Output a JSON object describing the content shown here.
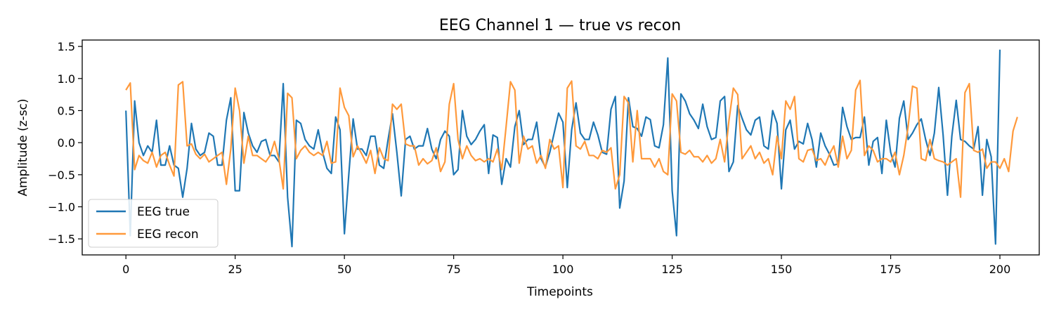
{
  "chart_data": {
    "type": "line",
    "title": "EEG Channel 1 — true vs recon",
    "xlabel": "Timepoints",
    "ylabel": "Amplitude (z-sc)",
    "xlim": [
      -10,
      209
    ],
    "ylim": [
      -1.75,
      1.6
    ],
    "xticks": [
      0,
      25,
      50,
      75,
      100,
      125,
      150,
      175,
      200
    ],
    "yticks": [
      -1.5,
      -1.0,
      -0.5,
      0.0,
      0.5,
      1.0,
      1.5
    ],
    "ytick_labels": [
      "−1.5",
      "−1.0",
      "−0.5",
      "0.0",
      "0.5",
      "1.0",
      "1.5"
    ],
    "grid": false,
    "legend_position": "lower-left",
    "series": [
      {
        "name": "EEG true",
        "color": "#1f77b4",
        "values": [
          0.5,
          -1.45,
          0.65,
          0.0,
          -0.2,
          -0.05,
          -0.15,
          0.35,
          -0.35,
          -0.35,
          -0.05,
          -0.35,
          -0.4,
          -0.85,
          -0.4,
          0.3,
          -0.1,
          -0.2,
          -0.15,
          0.15,
          0.1,
          -0.35,
          -0.35,
          0.35,
          0.7,
          -0.75,
          -0.75,
          0.47,
          0.15,
          -0.05,
          -0.15,
          0.02,
          0.05,
          -0.2,
          -0.2,
          -0.3,
          0.92,
          -0.85,
          -1.62,
          0.35,
          0.3,
          0.05,
          -0.05,
          -0.1,
          0.2,
          -0.15,
          -0.4,
          -0.48,
          0.4,
          0.2,
          -1.42,
          -0.5,
          0.37,
          -0.1,
          -0.1,
          -0.2,
          0.1,
          0.1,
          -0.35,
          -0.4,
          0.05,
          0.45,
          -0.15,
          -0.83,
          0.05,
          0.1,
          -0.1,
          -0.05,
          -0.05,
          0.22,
          -0.1,
          -0.25,
          0.05,
          0.18,
          0.1,
          -0.5,
          -0.42,
          0.5,
          0.1,
          -0.03,
          0.05,
          0.18,
          0.28,
          -0.48,
          0.12,
          0.08,
          -0.65,
          -0.25,
          -0.38,
          0.25,
          0.5,
          -0.03,
          0.05,
          0.05,
          0.32,
          -0.25,
          -0.38,
          -0.15,
          0.15,
          0.46,
          0.32,
          -0.7,
          0.2,
          0.62,
          0.15,
          0.05,
          0.05,
          0.32,
          0.12,
          -0.15,
          -0.18,
          0.52,
          0.72,
          -1.02,
          -0.6,
          0.7,
          0.25,
          0.22,
          0.1,
          0.4,
          0.36,
          -0.05,
          -0.08,
          0.28,
          1.32,
          -0.75,
          -1.45,
          0.76,
          0.65,
          0.45,
          0.35,
          0.22,
          0.6,
          0.25,
          0.05,
          0.08,
          0.65,
          0.72,
          -0.45,
          -0.3,
          0.58,
          0.38,
          0.2,
          0.12,
          0.35,
          0.4,
          -0.05,
          -0.1,
          0.5,
          0.3,
          -0.72,
          0.2,
          0.35,
          -0.1,
          0.02,
          -0.02,
          0.3,
          0.05,
          -0.38,
          0.15,
          -0.05,
          -0.18,
          -0.35,
          -0.33,
          0.55,
          0.25,
          0.05,
          0.08,
          0.08,
          0.4,
          -0.35,
          0.02,
          0.08,
          -0.48,
          0.35,
          -0.15,
          -0.38,
          0.38,
          0.65,
          0.05,
          0.15,
          0.28,
          0.37,
          0.05,
          -0.2,
          0.15,
          0.86,
          0.12,
          -0.82,
          0.1,
          0.66,
          0.05,
          0.02,
          -0.05,
          -0.1,
          0.25,
          -0.82,
          0.05,
          -0.22,
          -1.58,
          1.45
        ]
      },
      {
        "name": "EEG recon",
        "color": "#ff993b",
        "values": [
          0.82,
          0.93,
          -0.42,
          -0.2,
          -0.28,
          -0.32,
          -0.15,
          -0.38,
          -0.2,
          -0.15,
          -0.35,
          -0.52,
          0.9,
          0.95,
          -0.05,
          -0.02,
          -0.18,
          -0.25,
          -0.18,
          -0.3,
          -0.25,
          -0.2,
          -0.15,
          -0.65,
          -0.1,
          0.85,
          0.5,
          -0.32,
          0.1,
          -0.2,
          -0.2,
          -0.25,
          -0.3,
          -0.2,
          0.02,
          -0.25,
          -0.72,
          0.77,
          0.7,
          -0.25,
          -0.12,
          -0.05,
          -0.15,
          -0.2,
          -0.15,
          -0.2,
          0.02,
          -0.32,
          -0.3,
          0.85,
          0.55,
          0.42,
          -0.22,
          -0.05,
          -0.18,
          -0.32,
          -0.12,
          -0.48,
          -0.08,
          -0.25,
          -0.28,
          0.6,
          0.52,
          0.6,
          -0.02,
          -0.05,
          -0.05,
          -0.35,
          -0.25,
          -0.33,
          -0.28,
          -0.08,
          -0.45,
          -0.3,
          0.6,
          0.92,
          0.05,
          -0.25,
          -0.05,
          -0.2,
          -0.28,
          -0.25,
          -0.3,
          -0.25,
          -0.3,
          -0.1,
          -0.42,
          0.25,
          0.95,
          0.82,
          -0.32,
          0.1,
          -0.1,
          -0.05,
          -0.32,
          -0.2,
          -0.4,
          0.05,
          -0.1,
          -0.05,
          -0.7,
          0.85,
          0.96,
          -0.05,
          -0.1,
          0.02,
          -0.2,
          -0.2,
          -0.25,
          -0.12,
          -0.15,
          -0.08,
          -0.72,
          -0.5,
          0.72,
          0.62,
          -0.3,
          0.5,
          -0.25,
          -0.25,
          -0.25,
          -0.38,
          -0.25,
          -0.45,
          -0.5,
          0.76,
          0.65,
          -0.15,
          -0.18,
          -0.12,
          -0.22,
          -0.22,
          -0.3,
          -0.2,
          -0.32,
          -0.25,
          0.05,
          -0.3,
          0.35,
          0.85,
          0.75,
          -0.25,
          -0.15,
          -0.05,
          -0.25,
          -0.15,
          -0.32,
          -0.25,
          -0.5,
          0.1,
          -0.25,
          0.65,
          0.52,
          0.72,
          -0.25,
          -0.3,
          -0.12,
          -0.1,
          -0.28,
          -0.25,
          -0.35,
          -0.18,
          -0.05,
          -0.38,
          0.1,
          -0.25,
          -0.12,
          0.82,
          0.97,
          -0.2,
          -0.05,
          -0.12,
          -0.3,
          -0.25,
          -0.25,
          -0.3,
          -0.15,
          -0.5,
          -0.2,
          0.25,
          0.88,
          0.85,
          -0.25,
          -0.28,
          0.05,
          -0.25,
          -0.28,
          -0.3,
          -0.35,
          -0.3,
          -0.25,
          -0.85,
          0.78,
          0.92,
          -0.12,
          -0.15,
          -0.1,
          -0.4,
          -0.3,
          -0.3,
          -0.4,
          -0.25,
          -0.45,
          0.18,
          0.4
        ]
      }
    ]
  }
}
